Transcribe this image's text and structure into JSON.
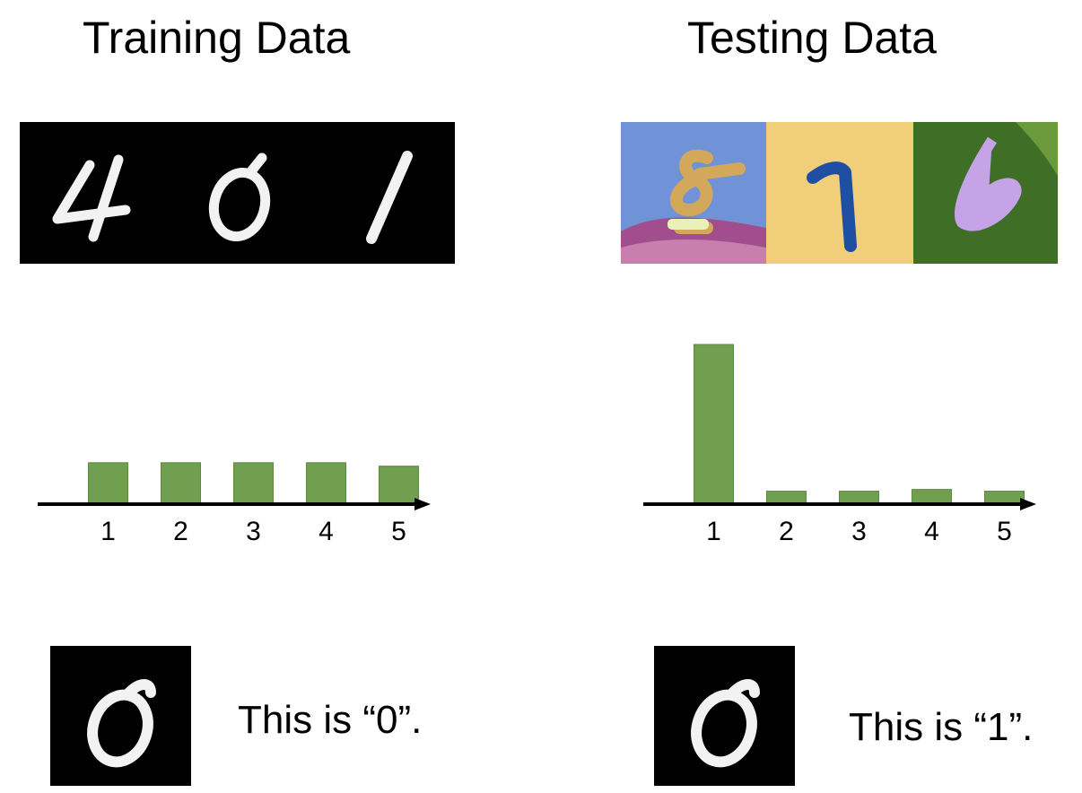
{
  "left": {
    "title": "Training Data",
    "strip_digits": [
      "4",
      "0",
      "1"
    ],
    "caption": "This is “0”."
  },
  "right": {
    "title": "Testing Data",
    "strip_digits": [
      "8",
      "1",
      "6"
    ],
    "caption": "This is “1”."
  },
  "sample_digit": "0",
  "colors": {
    "bar": "#70a04f",
    "bar_border": "#5a8a3c",
    "sky": "#6f93d6",
    "mountain": "#a24d8e",
    "sand": "#f1cf7a",
    "leaf": "#3f6e26",
    "digit_8": "#d4a85a",
    "digit_1": "#1f4fa3",
    "digit_6": "#c5a3e6"
  },
  "chart_data": [
    {
      "type": "bar",
      "categories": [
        "1",
        "2",
        "3",
        "4",
        "5"
      ],
      "values": [
        0.48,
        0.48,
        0.48,
        0.48,
        0.44
      ],
      "ylim": [
        0,
        1.85
      ]
    },
    {
      "type": "bar",
      "categories": [
        "1",
        "2",
        "3",
        "4",
        "5"
      ],
      "values": [
        1.85,
        0.15,
        0.15,
        0.17,
        0.15
      ],
      "ylim": [
        0,
        1.85
      ]
    }
  ]
}
